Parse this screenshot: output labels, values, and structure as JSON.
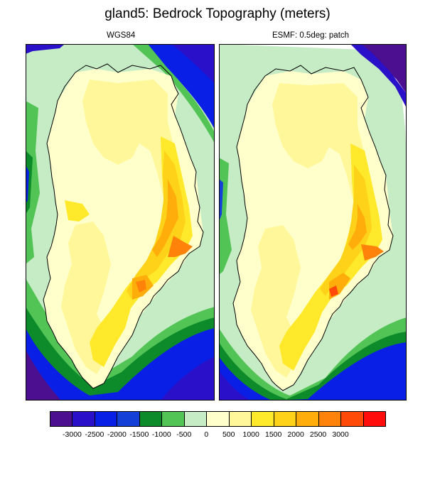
{
  "figure": {
    "title": "gland5: Bedrock Topography (meters)"
  },
  "chart_data": [
    {
      "type": "heatmap",
      "title": "WGS84",
      "variable": "Bedrock Topography",
      "units": "meters",
      "region": "Greenland",
      "land_max_approx": 3000,
      "ocean_min_approx": -3000
    },
    {
      "type": "heatmap",
      "title": "ESMF: 0.5deg: patch",
      "variable": "Bedrock Topography",
      "units": "meters",
      "region": "Greenland",
      "land_max_approx": 2500,
      "ocean_min_approx": -3000
    }
  ],
  "colorbar": {
    "labels": [
      "-3000",
      "-2500",
      "-2000",
      "-1500",
      "-1000",
      "-500",
      "0",
      "500",
      "1000",
      "1500",
      "2000",
      "2500",
      "3000"
    ],
    "colors": [
      "#4b0f90",
      "#2a10c8",
      "#0a1fe6",
      "#1540d8",
      "#0d8a2a",
      "#52c456",
      "#c6ecc6",
      "#ffffcc",
      "#fff799",
      "#ffe92a",
      "#ffd21a",
      "#ffad0a",
      "#ff820a",
      "#ff4a0a",
      "#ff0c0c"
    ]
  },
  "palette": {
    "deep": "#4b0f90",
    "blue": "#0a1fe6",
    "blue2": "#1540d8",
    "dark_green": "#0d8a2a",
    "green": "#52c456",
    "light_green": "#c6ecc6",
    "cream": "#ffffcc",
    "pale_yellow": "#fff799",
    "yellow": "#ffe92a",
    "gold": "#ffd21a",
    "orange": "#ffad0a",
    "dark_orange": "#ff820a",
    "red_orange": "#ff4a0a"
  }
}
